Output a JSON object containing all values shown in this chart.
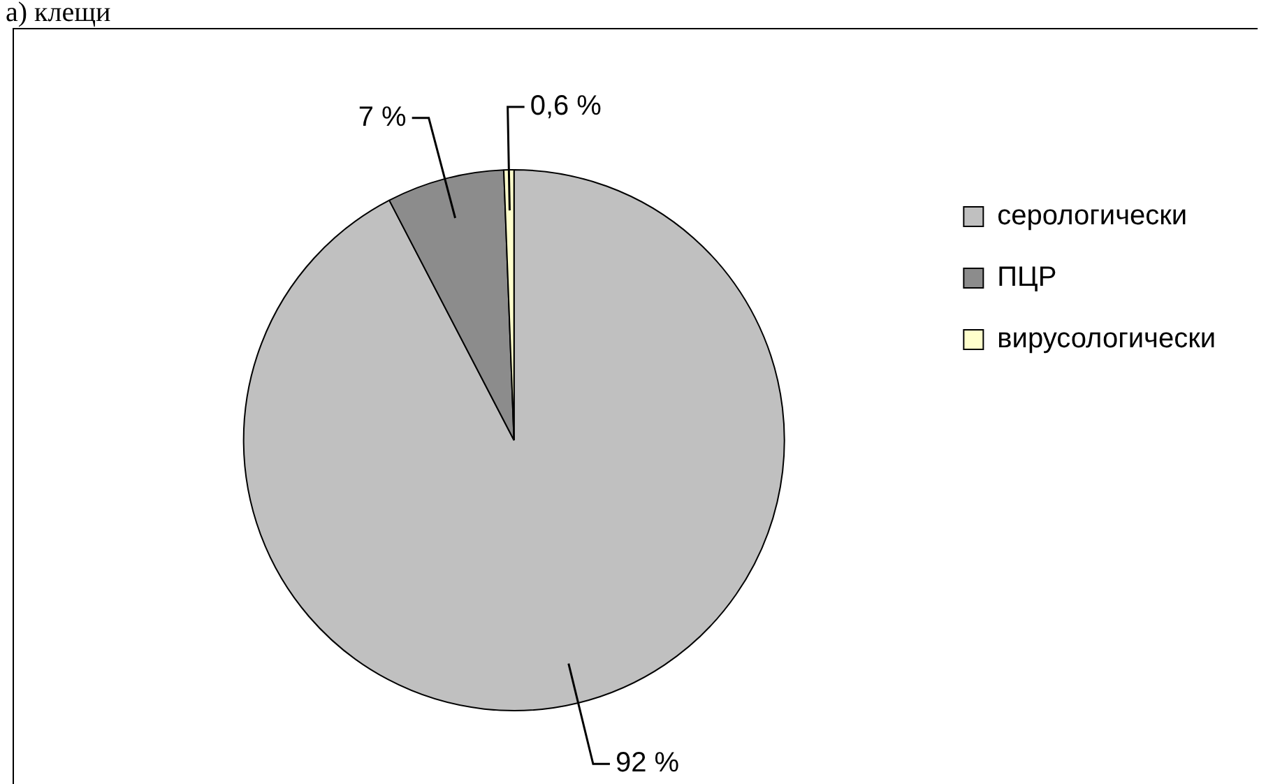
{
  "chart_data": {
    "type": "pie",
    "title": "а) клещи",
    "categories": [
      "серологически",
      "ПЦР",
      "вирусологически"
    ],
    "values": [
      92,
      7,
      0.6
    ],
    "colors": [
      "#c0c0c0",
      "#8c8c8c",
      "#ffffcc"
    ],
    "value_labels": [
      "92 %",
      "7 %",
      "0,6 %"
    ],
    "legend": "top right"
  }
}
